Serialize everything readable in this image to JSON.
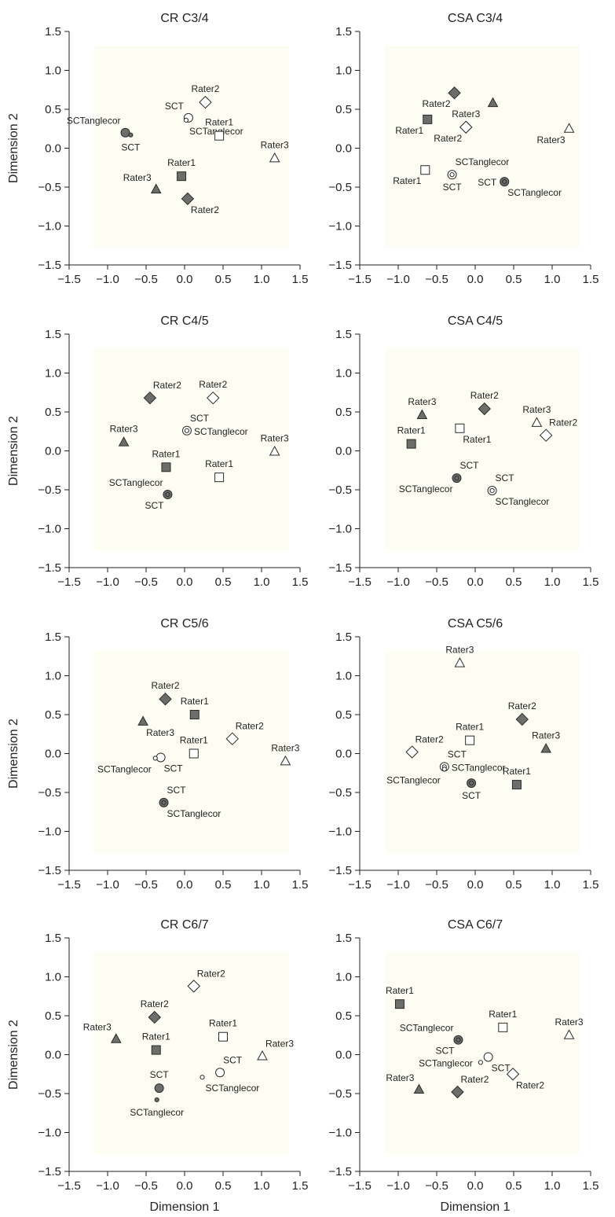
{
  "figure": {
    "x_axis_label": "Dimension 1",
    "y_axis_label": "Dimension 2",
    "colors": {
      "filled_marker": "#6b6e6a",
      "open_marker": "#ffffff",
      "marker_stroke": "#2b2b2b",
      "panel_tint": "#fdfdf3",
      "axis": "#222222"
    }
  },
  "chart_data": [
    {
      "type": "scatter",
      "title": "CR C3/4",
      "xlim": [
        -1.5,
        1.5
      ],
      "ylim": [
        -1.5,
        1.5
      ],
      "xticks": [
        "−1.5",
        "−1.0",
        "−0.5",
        "0.0",
        "0.5",
        "1.0",
        "1.5"
      ],
      "yticks": [
        "−1.5",
        "−1.0",
        "−0.5",
        "0.0",
        "0.5",
        "1.0",
        "1.5"
      ],
      "xlabel": "",
      "ylabel": "Dimension 2",
      "points": [
        {
          "label": "SCTanglecor",
          "marker": "circle",
          "filled": true,
          "x": -0.77,
          "y": 0.2,
          "label_pos": "above-left"
        },
        {
          "label": "SCT",
          "marker": "small-circle",
          "filled": true,
          "x": -0.7,
          "y": 0.17,
          "label_pos": "below"
        },
        {
          "label": "Rater1",
          "marker": "square",
          "filled": true,
          "x": -0.04,
          "y": -0.36,
          "label_pos": "above"
        },
        {
          "label": "Rater2",
          "marker": "diamond",
          "filled": true,
          "x": 0.04,
          "y": -0.65,
          "label_pos": "below-right"
        },
        {
          "label": "Rater3",
          "marker": "triangle",
          "filled": true,
          "x": -0.37,
          "y": -0.53,
          "label_pos": "above-left"
        },
        {
          "label": "SCT",
          "marker": "circle",
          "filled": false,
          "x": 0.05,
          "y": 0.39,
          "label_pos": "above-left"
        },
        {
          "label": "SCTanglecor",
          "marker": "small-circle",
          "filled": false,
          "x": 0.02,
          "y": 0.36,
          "label_pos": "below-right"
        },
        {
          "label": "Rater1",
          "marker": "square",
          "filled": false,
          "x": 0.45,
          "y": 0.16,
          "label_pos": "above"
        },
        {
          "label": "Rater2",
          "marker": "diamond",
          "filled": false,
          "x": 0.27,
          "y": 0.59,
          "label_pos": "above"
        },
        {
          "label": "Rater3",
          "marker": "triangle",
          "filled": false,
          "x": 1.17,
          "y": -0.13,
          "label_pos": "above"
        }
      ]
    },
    {
      "type": "scatter",
      "title": "CSA C3/4",
      "xlim": [
        -1.5,
        1.5
      ],
      "ylim": [
        -1.5,
        1.5
      ],
      "xticks": [
        "−1.5",
        "−1.0",
        "−0.5",
        "0.0",
        "0.5",
        "1.0",
        "1.5"
      ],
      "yticks": [
        "−1.5",
        "−1.0",
        "−0.5",
        "0.0",
        "0.5",
        "1.0",
        "1.5"
      ],
      "xlabel": "",
      "ylabel": "",
      "points": [
        {
          "label": "Rater2",
          "marker": "diamond",
          "filled": true,
          "x": -0.27,
          "y": 0.71,
          "label_pos": "below-left"
        },
        {
          "label": "Rater1",
          "marker": "square",
          "filled": true,
          "x": -0.62,
          "y": 0.37,
          "label_pos": "below-left"
        },
        {
          "label": "",
          "marker": "triangle",
          "filled": true,
          "x": 0.23,
          "y": 0.58,
          "label_pos": "none"
        },
        {
          "label": "SCTanglecor",
          "marker": "circle",
          "filled": true,
          "x": 0.38,
          "y": -0.43,
          "label_pos": "below-right"
        },
        {
          "label": "SCT",
          "marker": "small-circle",
          "filled": true,
          "x": 0.38,
          "y": -0.43,
          "label_pos": "left"
        },
        {
          "label": "Rater3",
          "marker": "diamond",
          "filled": false,
          "x": -0.12,
          "y": 0.27,
          "label_pos": "above"
        },
        {
          "label": "Rater2",
          "marker": "diamond",
          "filled": false,
          "x": -0.12,
          "y": 0.27,
          "label_pos": "below-left"
        },
        {
          "label": "Rater1",
          "marker": "square",
          "filled": false,
          "x": -0.65,
          "y": -0.28,
          "label_pos": "below-left"
        },
        {
          "label": "SCTanglecor",
          "marker": "circle",
          "filled": false,
          "x": -0.3,
          "y": -0.34,
          "label_pos": "above-right"
        },
        {
          "label": "SCT",
          "marker": "small-circle",
          "filled": false,
          "x": -0.3,
          "y": -0.34,
          "label_pos": "below"
        },
        {
          "label": "Rater3",
          "marker": "triangle",
          "filled": false,
          "x": 1.22,
          "y": 0.25,
          "label_pos": "below-left"
        }
      ]
    },
    {
      "type": "scatter",
      "title": "CR C4/5",
      "xlim": [
        -1.5,
        1.5
      ],
      "ylim": [
        -1.5,
        1.5
      ],
      "xticks": [
        "−1.5",
        "−1.0",
        "−0.5",
        "0.0",
        "0.5",
        "1.0",
        "1.5"
      ],
      "yticks": [
        "−1.5",
        "−1.0",
        "−0.5",
        "0.0",
        "0.5",
        "1.0",
        "1.5"
      ],
      "xlabel": "",
      "ylabel": "Dimension 2",
      "points": [
        {
          "label": "Rater2",
          "marker": "diamond",
          "filled": true,
          "x": -0.45,
          "y": 0.68,
          "label_pos": "above-right"
        },
        {
          "label": "Rater3",
          "marker": "triangle",
          "filled": true,
          "x": -0.79,
          "y": 0.11,
          "label_pos": "above"
        },
        {
          "label": "Rater1",
          "marker": "square",
          "filled": true,
          "x": -0.24,
          "y": -0.21,
          "label_pos": "above"
        },
        {
          "label": "SCTanglecor",
          "marker": "circle",
          "filled": true,
          "x": -0.22,
          "y": -0.56,
          "label_pos": "above-left"
        },
        {
          "label": "SCT",
          "marker": "small-circle",
          "filled": true,
          "x": -0.22,
          "y": -0.56,
          "label_pos": "below-left"
        },
        {
          "label": "Rater2",
          "marker": "diamond",
          "filled": false,
          "x": 0.37,
          "y": 0.68,
          "label_pos": "above"
        },
        {
          "label": "SCT",
          "marker": "circle",
          "filled": false,
          "x": 0.03,
          "y": 0.26,
          "label_pos": "above-right"
        },
        {
          "label": "SCTanglecor",
          "marker": "small-circle",
          "filled": false,
          "x": 0.03,
          "y": 0.26,
          "label_pos": "right"
        },
        {
          "label": "Rater1",
          "marker": "square",
          "filled": false,
          "x": 0.45,
          "y": -0.34,
          "label_pos": "above"
        },
        {
          "label": "Rater3",
          "marker": "triangle",
          "filled": false,
          "x": 1.17,
          "y": -0.01,
          "label_pos": "above"
        }
      ]
    },
    {
      "type": "scatter",
      "title": "CSA C4/5",
      "xlim": [
        -1.5,
        1.5
      ],
      "ylim": [
        -1.5,
        1.5
      ],
      "xticks": [
        "−1.5",
        "−1.0",
        "−0.5",
        "0.0",
        "0.5",
        "1.0",
        "1.5"
      ],
      "yticks": [
        "−1.5",
        "−1.0",
        "−0.5",
        "0.0",
        "0.5",
        "1.0",
        "1.5"
      ],
      "xlabel": "",
      "ylabel": "",
      "points": [
        {
          "label": "Rater3",
          "marker": "triangle",
          "filled": true,
          "x": -0.69,
          "y": 0.46,
          "label_pos": "above"
        },
        {
          "label": "Rater2",
          "marker": "diamond",
          "filled": true,
          "x": 0.12,
          "y": 0.54,
          "label_pos": "above"
        },
        {
          "label": "Rater1",
          "marker": "square",
          "filled": true,
          "x": -0.83,
          "y": 0.09,
          "label_pos": "above"
        },
        {
          "label": "SCT",
          "marker": "circle",
          "filled": true,
          "x": -0.24,
          "y": -0.35,
          "label_pos": "above-right"
        },
        {
          "label": "SCTanglecor",
          "marker": "small-circle",
          "filled": true,
          "x": -0.24,
          "y": -0.35,
          "label_pos": "below-left"
        },
        {
          "label": "Rater1",
          "marker": "square",
          "filled": false,
          "x": -0.2,
          "y": 0.29,
          "label_pos": "below-right"
        },
        {
          "label": "Rater3",
          "marker": "triangle",
          "filled": false,
          "x": 0.8,
          "y": 0.36,
          "label_pos": "above"
        },
        {
          "label": "Rater2",
          "marker": "diamond",
          "filled": false,
          "x": 0.92,
          "y": 0.2,
          "label_pos": "above-right"
        },
        {
          "label": "SCT",
          "marker": "circle",
          "filled": false,
          "x": 0.22,
          "y": -0.51,
          "label_pos": "above-right"
        },
        {
          "label": "SCTanglecor",
          "marker": "small-circle",
          "filled": false,
          "x": 0.22,
          "y": -0.51,
          "label_pos": "below-right"
        }
      ]
    },
    {
      "type": "scatter",
      "title": "CR C5/6",
      "xlim": [
        -1.5,
        1.5
      ],
      "ylim": [
        -1.5,
        1.5
      ],
      "xticks": [
        "−1.5",
        "−1.0",
        "−0.5",
        "0.0",
        "0.5",
        "1.0",
        "1.5"
      ],
      "yticks": [
        "−1.5",
        "−1.0",
        "−0.5",
        "0.0",
        "0.5",
        "1.0",
        "1.5"
      ],
      "xlabel": "",
      "ylabel": "Dimension 2",
      "points": [
        {
          "label": "Rater2",
          "marker": "diamond",
          "filled": true,
          "x": -0.25,
          "y": 0.7,
          "label_pos": "above"
        },
        {
          "label": "Rater1",
          "marker": "square",
          "filled": true,
          "x": 0.13,
          "y": 0.5,
          "label_pos": "above"
        },
        {
          "label": "Rater3",
          "marker": "triangle",
          "filled": true,
          "x": -0.54,
          "y": 0.41,
          "label_pos": "below-right"
        },
        {
          "label": "SCT",
          "marker": "circle",
          "filled": true,
          "x": -0.27,
          "y": -0.63,
          "label_pos": "above-right"
        },
        {
          "label": "SCTanglecor",
          "marker": "small-circle",
          "filled": true,
          "x": -0.27,
          "y": -0.63,
          "label_pos": "below-right"
        },
        {
          "label": "SCT",
          "marker": "circle",
          "filled": false,
          "x": -0.31,
          "y": -0.05,
          "label_pos": "below-right"
        },
        {
          "label": "SCTanglecor",
          "marker": "small-circle",
          "filled": false,
          "x": -0.38,
          "y": -0.06,
          "label_pos": "below-left"
        },
        {
          "label": "Rater1",
          "marker": "square",
          "filled": false,
          "x": 0.12,
          "y": 0.0,
          "label_pos": "above"
        },
        {
          "label": "Rater2",
          "marker": "diamond",
          "filled": false,
          "x": 0.62,
          "y": 0.19,
          "label_pos": "above-right"
        },
        {
          "label": "Rater3",
          "marker": "triangle",
          "filled": false,
          "x": 1.31,
          "y": -0.1,
          "label_pos": "above"
        }
      ]
    },
    {
      "type": "scatter",
      "title": "CSA C5/6",
      "xlim": [
        -1.5,
        1.5
      ],
      "ylim": [
        -1.5,
        1.5
      ],
      "xticks": [
        "−1.5",
        "−1.0",
        "−0.5",
        "0.0",
        "0.5",
        "1.0",
        "1.5"
      ],
      "yticks": [
        "−1.5",
        "−1.0",
        "−0.5",
        "0.0",
        "0.5",
        "1.0",
        "1.5"
      ],
      "xlabel": "",
      "ylabel": "",
      "points": [
        {
          "label": "Rater3",
          "marker": "triangle",
          "filled": false,
          "x": -0.2,
          "y": 1.16,
          "label_pos": "above"
        },
        {
          "label": "Rater2",
          "marker": "diamond",
          "filled": true,
          "x": 0.61,
          "y": 0.44,
          "label_pos": "above"
        },
        {
          "label": "Rater3",
          "marker": "triangle",
          "filled": true,
          "x": 0.92,
          "y": 0.06,
          "label_pos": "above"
        },
        {
          "label": "Rater1",
          "marker": "square",
          "filled": true,
          "x": 0.54,
          "y": -0.4,
          "label_pos": "above"
        },
        {
          "label": "SCT",
          "marker": "circle",
          "filled": true,
          "x": -0.05,
          "y": -0.38,
          "label_pos": "below"
        },
        {
          "label": "",
          "marker": "small-circle",
          "filled": true,
          "x": -0.05,
          "y": -0.38,
          "label_pos": "none"
        },
        {
          "label": "Rater1",
          "marker": "square",
          "filled": false,
          "x": -0.07,
          "y": 0.17,
          "label_pos": "above"
        },
        {
          "label": "Rater2",
          "marker": "diamond",
          "filled": false,
          "x": -0.82,
          "y": 0.02,
          "label_pos": "above-right"
        },
        {
          "label": "SCT",
          "marker": "circle",
          "filled": false,
          "x": -0.4,
          "y": -0.17,
          "label_pos": "above-right"
        },
        {
          "label": "SCTanglecor",
          "marker": "small-circle",
          "filled": false,
          "x": -0.4,
          "y": -0.17,
          "label_pos": "right"
        },
        {
          "label": "SCTanglecor",
          "marker": "small-circle",
          "filled": false,
          "x": -0.4,
          "y": -0.2,
          "label_pos": "below-left"
        }
      ]
    },
    {
      "type": "scatter",
      "title": "CR C6/7",
      "xlim": [
        -1.5,
        1.5
      ],
      "ylim": [
        -1.5,
        1.5
      ],
      "xticks": [
        "−1.5",
        "−1.0",
        "−0.5",
        "0.0",
        "0.5",
        "1.0",
        "1.5"
      ],
      "yticks": [
        "−1.5",
        "−1.0",
        "−0.5",
        "0.0",
        "0.5",
        "1.0",
        "1.5"
      ],
      "xlabel": "Dimension 1",
      "ylabel": "Dimension 2",
      "points": [
        {
          "label": "Rater2",
          "marker": "diamond",
          "filled": false,
          "x": 0.12,
          "y": 0.88,
          "label_pos": "above-right"
        },
        {
          "label": "Rater2",
          "marker": "diamond",
          "filled": true,
          "x": -0.39,
          "y": 0.48,
          "label_pos": "above"
        },
        {
          "label": "Rater3",
          "marker": "triangle",
          "filled": true,
          "x": -0.89,
          "y": 0.2,
          "label_pos": "above-left"
        },
        {
          "label": "Rater1",
          "marker": "square",
          "filled": true,
          "x": -0.37,
          "y": 0.06,
          "label_pos": "above"
        },
        {
          "label": "Rater1",
          "marker": "square",
          "filled": false,
          "x": 0.5,
          "y": 0.23,
          "label_pos": "above"
        },
        {
          "label": "Rater3",
          "marker": "triangle",
          "filled": false,
          "x": 1.01,
          "y": -0.02,
          "label_pos": "above-right"
        },
        {
          "label": "SCT",
          "marker": "circle",
          "filled": true,
          "x": -0.33,
          "y": -0.43,
          "label_pos": "above"
        },
        {
          "label": "SCTanglecor",
          "marker": "small-circle",
          "filled": true,
          "x": -0.36,
          "y": -0.58,
          "label_pos": "below"
        },
        {
          "label": "SCT",
          "marker": "circle",
          "filled": false,
          "x": 0.46,
          "y": -0.23,
          "label_pos": "above-right"
        },
        {
          "label": "SCTanglecor",
          "marker": "small-circle",
          "filled": false,
          "x": 0.23,
          "y": -0.29,
          "label_pos": "below-right"
        }
      ]
    },
    {
      "type": "scatter",
      "title": "CSA C6/7",
      "xlim": [
        -1.5,
        1.5
      ],
      "ylim": [
        -1.5,
        1.5
      ],
      "xticks": [
        "−1.5",
        "−1.0",
        "−0.5",
        "0.0",
        "0.5",
        "1.0",
        "1.5"
      ],
      "yticks": [
        "−1.5",
        "−1.0",
        "−0.5",
        "0.0",
        "0.5",
        "1.0",
        "1.5"
      ],
      "xlabel": "Dimension 1",
      "ylabel": "",
      "points": [
        {
          "label": "Rater1",
          "marker": "square",
          "filled": true,
          "x": -0.98,
          "y": 0.65,
          "label_pos": "above"
        },
        {
          "label": "Rater1",
          "marker": "square",
          "filled": false,
          "x": 0.36,
          "y": 0.35,
          "label_pos": "above"
        },
        {
          "label": "Rater3",
          "marker": "triangle",
          "filled": false,
          "x": 1.22,
          "y": 0.25,
          "label_pos": "above"
        },
        {
          "label": "SCTanglecor",
          "marker": "circle",
          "filled": true,
          "x": -0.22,
          "y": 0.19,
          "label_pos": "above-left"
        },
        {
          "label": "SCT",
          "marker": "small-circle",
          "filled": true,
          "x": -0.22,
          "y": 0.19,
          "label_pos": "below-left"
        },
        {
          "label": "SCT",
          "marker": "circle",
          "filled": false,
          "x": 0.17,
          "y": -0.03,
          "label_pos": "below-right"
        },
        {
          "label": "SCTanglecor",
          "marker": "small-circle",
          "filled": false,
          "x": 0.07,
          "y": -0.1,
          "label_pos": "left"
        },
        {
          "label": "Rater3",
          "marker": "triangle",
          "filled": true,
          "x": -0.73,
          "y": -0.45,
          "label_pos": "above-left"
        },
        {
          "label": "Rater2",
          "marker": "diamond",
          "filled": true,
          "x": -0.23,
          "y": -0.48,
          "label_pos": "above-right"
        },
        {
          "label": "Rater2",
          "marker": "diamond",
          "filled": false,
          "x": 0.49,
          "y": -0.25,
          "label_pos": "below-right"
        }
      ]
    }
  ]
}
